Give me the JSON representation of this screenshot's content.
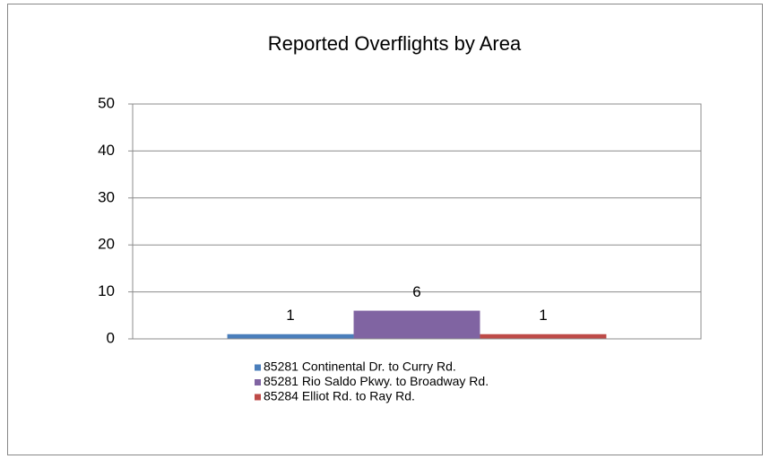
{
  "chart_data": {
    "type": "bar",
    "title": "Reported Overflights by Area",
    "categories": [
      null
    ],
    "series": [
      {
        "name": "85281 Continental Dr. to Curry Rd.",
        "color": "#4a7ebb",
        "values": [
          1
        ]
      },
      {
        "name": "85281 Rio Saldo Pkwy. to Broadway Rd.",
        "color": "#8064a2",
        "values": [
          6
        ]
      },
      {
        "name": "85284 Elliot Rd. to Ray Rd.",
        "color": "#be4b48",
        "values": [
          1
        ]
      }
    ],
    "ylim": [
      0,
      50
    ],
    "yticks": [
      0,
      10,
      20,
      30,
      40,
      50
    ],
    "grid": true,
    "legend": "bottom"
  }
}
